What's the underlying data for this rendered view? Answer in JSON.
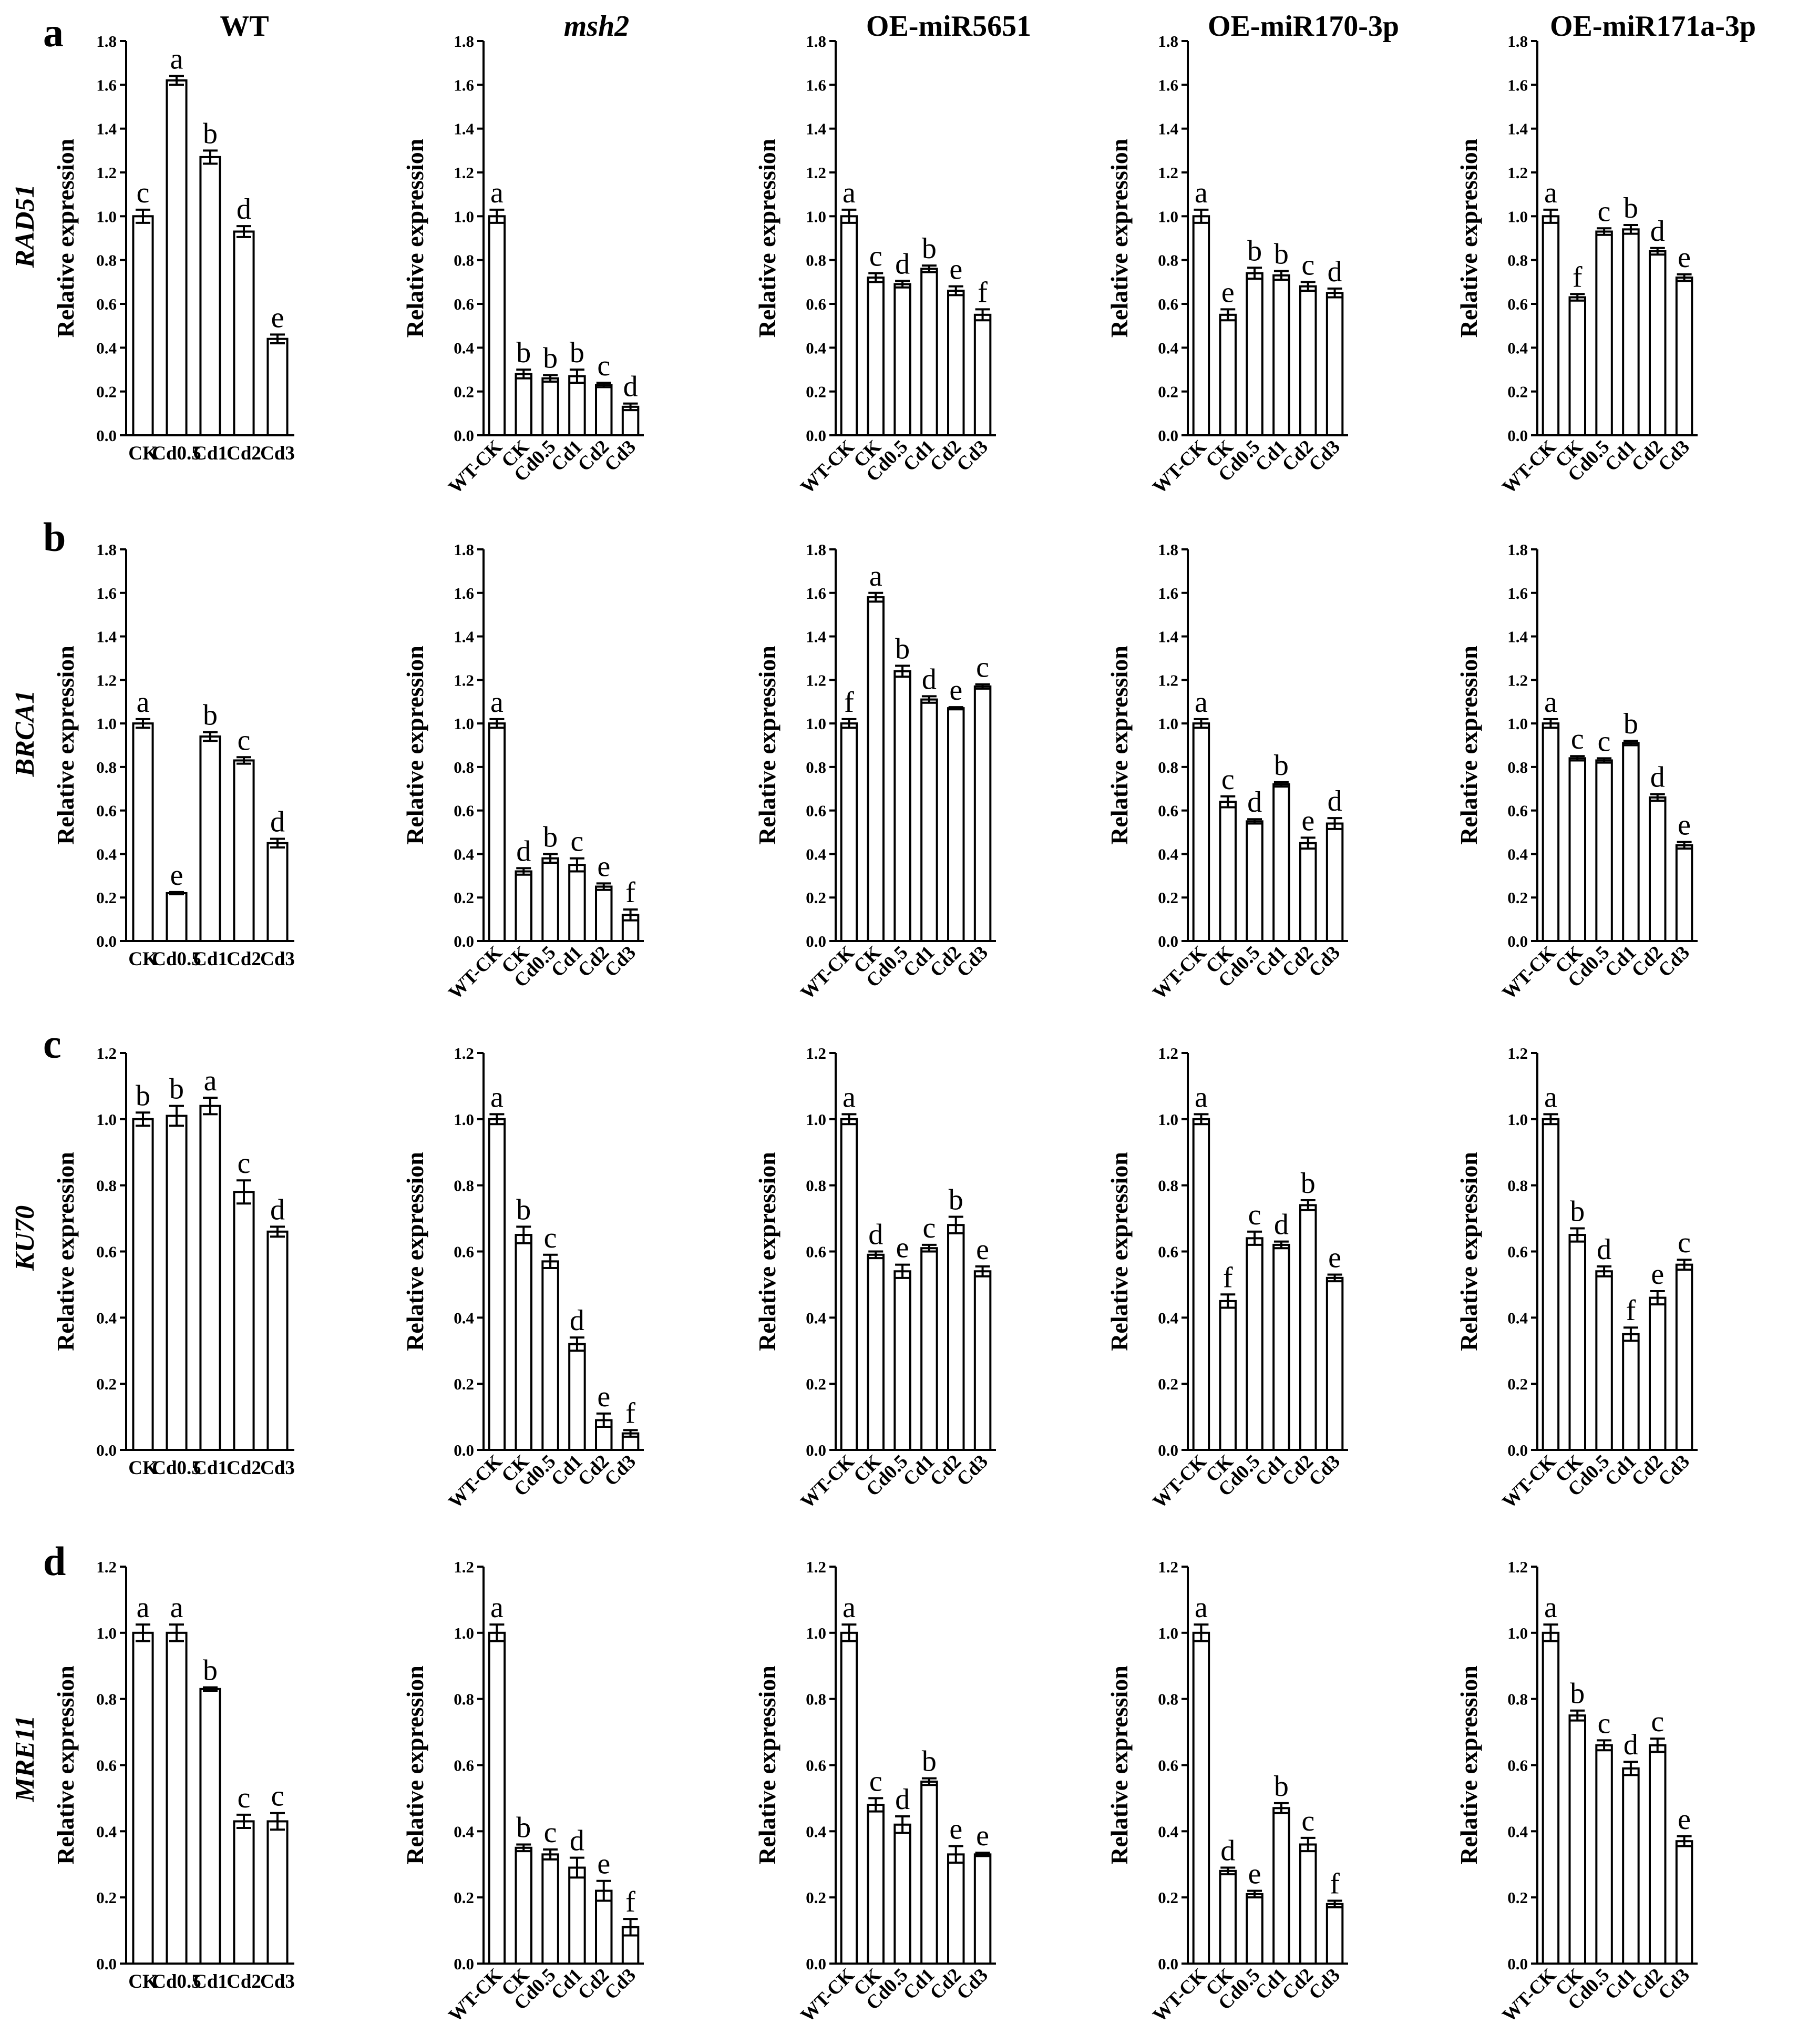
{
  "figure": {
    "columns": [
      {
        "title": "WT",
        "italic": false
      },
      {
        "title": "msh2",
        "italic": true
      },
      {
        "title": "OE-miR5651",
        "italic": false
      },
      {
        "title": "OE-miR170-3p",
        "italic": false
      },
      {
        "title": "OE-miR171a-3p",
        "italic": false
      }
    ],
    "rows": [
      {
        "letter": "a",
        "gene": "RAD51"
      },
      {
        "letter": "b",
        "gene": "BRCA1"
      },
      {
        "letter": "c",
        "gene": "KU70"
      },
      {
        "letter": "d",
        "gene": "MRE11"
      }
    ],
    "ylabel": "Relative expression",
    "bar_fill": "#ffffff",
    "bar_stroke": "#000000"
  },
  "chart_data": [
    {
      "type": "bar",
      "row": 0,
      "col": 0,
      "categories": [
        "CK",
        "Cd0.5",
        "Cd1",
        "Cd2",
        "Cd3"
      ],
      "values": [
        1.0,
        1.62,
        1.27,
        0.93,
        0.44
      ],
      "errors": [
        0.03,
        0.02,
        0.03,
        0.025,
        0.02
      ],
      "letters": [
        "c",
        "a",
        "b",
        "d",
        "e"
      ],
      "ylim": [
        0,
        1.8
      ],
      "yticks": [
        "0.0",
        "0.2",
        "0.4",
        "0.6",
        "0.8",
        "1.0",
        "1.2",
        "1.4",
        "1.6",
        "1.8"
      ],
      "ylabel": "Relative expression"
    },
    {
      "type": "bar",
      "row": 0,
      "col": 1,
      "categories": [
        "WT-CK",
        "CK",
        "Cd0.5",
        "Cd1",
        "Cd2",
        "Cd3"
      ],
      "values": [
        1.0,
        0.28,
        0.26,
        0.27,
        0.23,
        0.13
      ],
      "errors": [
        0.03,
        0.02,
        0.015,
        0.03,
        0.01,
        0.015
      ],
      "letters": [
        "a",
        "b",
        "b",
        "b",
        "c",
        "d"
      ],
      "ylim": [
        0,
        1.8
      ],
      "yticks": [
        "0.0",
        "0.2",
        "0.4",
        "0.6",
        "0.8",
        "1.0",
        "1.2",
        "1.4",
        "1.6",
        "1.8"
      ],
      "ylabel": "Relative expression"
    },
    {
      "type": "bar",
      "row": 0,
      "col": 2,
      "categories": [
        "WT-CK",
        "CK",
        "Cd0.5",
        "Cd1",
        "Cd2",
        "Cd3"
      ],
      "values": [
        1.0,
        0.72,
        0.69,
        0.76,
        0.66,
        0.55
      ],
      "errors": [
        0.03,
        0.02,
        0.015,
        0.015,
        0.02,
        0.025
      ],
      "letters": [
        "a",
        "c",
        "d",
        "b",
        "e",
        "f"
      ],
      "ylim": [
        0,
        1.8
      ],
      "yticks": [
        "0.0",
        "0.2",
        "0.4",
        "0.6",
        "0.8",
        "1.0",
        "1.2",
        "1.4",
        "1.6",
        "1.8"
      ],
      "ylabel": "Relative expression"
    },
    {
      "type": "bar",
      "row": 0,
      "col": 3,
      "categories": [
        "WT-CK",
        "CK",
        "Cd0.5",
        "Cd1",
        "Cd2",
        "Cd3"
      ],
      "values": [
        1.0,
        0.55,
        0.74,
        0.73,
        0.68,
        0.65
      ],
      "errors": [
        0.03,
        0.025,
        0.025,
        0.02,
        0.02,
        0.02
      ],
      "letters": [
        "a",
        "e",
        "b",
        "b",
        "c",
        "d"
      ],
      "ylim": [
        0,
        1.8
      ],
      "yticks": [
        "0.0",
        "0.2",
        "0.4",
        "0.6",
        "0.8",
        "1.0",
        "1.2",
        "1.4",
        "1.6",
        "1.8"
      ],
      "ylabel": "Relative expression"
    },
    {
      "type": "bar",
      "row": 0,
      "col": 4,
      "categories": [
        "WT-CK",
        "CK",
        "Cd0.5",
        "Cd1",
        "Cd2",
        "Cd3"
      ],
      "values": [
        1.0,
        0.63,
        0.93,
        0.94,
        0.84,
        0.72
      ],
      "errors": [
        0.03,
        0.015,
        0.015,
        0.02,
        0.015,
        0.015
      ],
      "letters": [
        "a",
        "f",
        "c",
        "b",
        "d",
        "e"
      ],
      "ylim": [
        0,
        1.8
      ],
      "yticks": [
        "0.0",
        "0.2",
        "0.4",
        "0.6",
        "0.8",
        "1.0",
        "1.2",
        "1.4",
        "1.6",
        "1.8"
      ],
      "ylabel": "Relative expression"
    },
    {
      "type": "bar",
      "row": 1,
      "col": 0,
      "categories": [
        "CK",
        "Cd0.5",
        "Cd1",
        "Cd2",
        "Cd3"
      ],
      "values": [
        1.0,
        0.22,
        0.94,
        0.83,
        0.45
      ],
      "errors": [
        0.02,
        0.005,
        0.02,
        0.015,
        0.02
      ],
      "letters": [
        "a",
        "e",
        "b",
        "c",
        "d"
      ],
      "ylim": [
        0,
        1.8
      ],
      "yticks": [
        "0.0",
        "0.2",
        "0.4",
        "0.6",
        "0.8",
        "1.0",
        "1.2",
        "1.4",
        "1.6",
        "1.8"
      ],
      "ylabel": "Relative expression"
    },
    {
      "type": "bar",
      "row": 1,
      "col": 1,
      "categories": [
        "WT-CK",
        "CK",
        "Cd0.5",
        "Cd1",
        "Cd2",
        "Cd3"
      ],
      "values": [
        1.0,
        0.32,
        0.38,
        0.35,
        0.25,
        0.12
      ],
      "errors": [
        0.02,
        0.015,
        0.02,
        0.03,
        0.015,
        0.025
      ],
      "letters": [
        "a",
        "d",
        "b",
        "c",
        "e",
        "f"
      ],
      "ylim": [
        0,
        1.8
      ],
      "yticks": [
        "0.0",
        "0.2",
        "0.4",
        "0.6",
        "0.8",
        "1.0",
        "1.2",
        "1.4",
        "1.6",
        "1.8"
      ],
      "ylabel": "Relative expression"
    },
    {
      "type": "bar",
      "row": 1,
      "col": 2,
      "categories": [
        "WT-CK",
        "CK",
        "Cd0.5",
        "Cd1",
        "Cd2",
        "Cd3"
      ],
      "values": [
        1.0,
        1.58,
        1.24,
        1.11,
        1.07,
        1.17
      ],
      "errors": [
        0.02,
        0.02,
        0.025,
        0.015,
        0.005,
        0.01
      ],
      "letters": [
        "f",
        "a",
        "b",
        "d",
        "e",
        "c"
      ],
      "ylim": [
        0,
        1.8
      ],
      "yticks": [
        "0.0",
        "0.2",
        "0.4",
        "0.6",
        "0.8",
        "1.0",
        "1.2",
        "1.4",
        "1.6",
        "1.8"
      ],
      "ylabel": "Relative expression"
    },
    {
      "type": "bar",
      "row": 1,
      "col": 3,
      "categories": [
        "WT-CK",
        "CK",
        "Cd0.5",
        "Cd1",
        "Cd2",
        "Cd3"
      ],
      "values": [
        1.0,
        0.64,
        0.55,
        0.72,
        0.45,
        0.54
      ],
      "errors": [
        0.02,
        0.025,
        0.01,
        0.01,
        0.025,
        0.025
      ],
      "letters": [
        "a",
        "c",
        "d",
        "b",
        "e",
        "d"
      ],
      "ylim": [
        0,
        1.8
      ],
      "yticks": [
        "0.0",
        "0.2",
        "0.4",
        "0.6",
        "0.8",
        "1.0",
        "1.2",
        "1.4",
        "1.6",
        "1.8"
      ],
      "ylabel": "Relative expression"
    },
    {
      "type": "bar",
      "row": 1,
      "col": 4,
      "categories": [
        "WT-CK",
        "CK",
        "Cd0.5",
        "Cd1",
        "Cd2",
        "Cd3"
      ],
      "values": [
        1.0,
        0.84,
        0.83,
        0.91,
        0.66,
        0.44
      ],
      "errors": [
        0.02,
        0.01,
        0.01,
        0.01,
        0.015,
        0.015
      ],
      "letters": [
        "a",
        "c",
        "c",
        "b",
        "d",
        "e"
      ],
      "ylim": [
        0,
        1.8
      ],
      "yticks": [
        "0.0",
        "0.2",
        "0.4",
        "0.6",
        "0.8",
        "1.0",
        "1.2",
        "1.4",
        "1.6",
        "1.8"
      ],
      "ylabel": "Relative expression"
    },
    {
      "type": "bar",
      "row": 2,
      "col": 0,
      "categories": [
        "CK",
        "Cd0.5",
        "Cd1",
        "Cd2",
        "Cd3"
      ],
      "values": [
        1.0,
        1.01,
        1.04,
        0.78,
        0.66
      ],
      "errors": [
        0.02,
        0.03,
        0.025,
        0.035,
        0.015
      ],
      "letters": [
        "b",
        "b",
        "a",
        "c",
        "d"
      ],
      "ylim": [
        0,
        1.2
      ],
      "yticks": [
        "0.0",
        "0.2",
        "0.4",
        "0.6",
        "0.8",
        "1.0",
        "1.2"
      ],
      "ylabel": "Relative expression"
    },
    {
      "type": "bar",
      "row": 2,
      "col": 1,
      "categories": [
        "WT-CK",
        "CK",
        "Cd0.5",
        "Cd1",
        "Cd2",
        "Cd3"
      ],
      "values": [
        1.0,
        0.65,
        0.57,
        0.32,
        0.09,
        0.05
      ],
      "errors": [
        0.015,
        0.025,
        0.02,
        0.02,
        0.02,
        0.01
      ],
      "letters": [
        "a",
        "b",
        "c",
        "d",
        "e",
        "f"
      ],
      "ylim": [
        0,
        1.2
      ],
      "yticks": [
        "0.0",
        "0.2",
        "0.4",
        "0.6",
        "0.8",
        "1.0",
        "1.2"
      ],
      "ylabel": "Relative expression"
    },
    {
      "type": "bar",
      "row": 2,
      "col": 2,
      "categories": [
        "WT-CK",
        "CK",
        "Cd0.5",
        "Cd1",
        "Cd2",
        "Cd3"
      ],
      "values": [
        1.0,
        0.59,
        0.54,
        0.61,
        0.68,
        0.54
      ],
      "errors": [
        0.015,
        0.01,
        0.02,
        0.01,
        0.025,
        0.015
      ],
      "letters": [
        "a",
        "d",
        "e",
        "c",
        "b",
        "e"
      ],
      "ylim": [
        0,
        1.2
      ],
      "yticks": [
        "0.0",
        "0.2",
        "0.4",
        "0.6",
        "0.8",
        "1.0",
        "1.2"
      ],
      "ylabel": "Relative expression"
    },
    {
      "type": "bar",
      "row": 2,
      "col": 3,
      "categories": [
        "WT-CK",
        "CK",
        "Cd0.5",
        "Cd1",
        "Cd2",
        "Cd3"
      ],
      "values": [
        1.0,
        0.45,
        0.64,
        0.62,
        0.74,
        0.52
      ],
      "errors": [
        0.015,
        0.02,
        0.02,
        0.01,
        0.015,
        0.01
      ],
      "letters": [
        "a",
        "f",
        "c",
        "d",
        "b",
        "e"
      ],
      "ylim": [
        0,
        1.2
      ],
      "yticks": [
        "0.0",
        "0.2",
        "0.4",
        "0.6",
        "0.8",
        "1.0",
        "1.2"
      ],
      "ylabel": "Relative expression"
    },
    {
      "type": "bar",
      "row": 2,
      "col": 4,
      "categories": [
        "WT-CK",
        "CK",
        "Cd0.5",
        "Cd1",
        "Cd2",
        "Cd3"
      ],
      "values": [
        1.0,
        0.65,
        0.54,
        0.35,
        0.46,
        0.56
      ],
      "errors": [
        0.015,
        0.02,
        0.015,
        0.02,
        0.02,
        0.015
      ],
      "letters": [
        "a",
        "b",
        "d",
        "f",
        "e",
        "c"
      ],
      "ylim": [
        0,
        1.2
      ],
      "yticks": [
        "0.0",
        "0.2",
        "0.4",
        "0.6",
        "0.8",
        "1.0",
        "1.2"
      ],
      "ylabel": "Relative expression"
    },
    {
      "type": "bar",
      "row": 3,
      "col": 0,
      "categories": [
        "CK",
        "Cd0.5",
        "Cd1",
        "Cd2",
        "Cd3"
      ],
      "values": [
        1.0,
        1.0,
        0.83,
        0.43,
        0.43
      ],
      "errors": [
        0.025,
        0.025,
        0.005,
        0.02,
        0.025
      ],
      "letters": [
        "a",
        "a",
        "b",
        "c",
        "c"
      ],
      "ylim": [
        0,
        1.2
      ],
      "yticks": [
        "0.0",
        "0.2",
        "0.4",
        "0.6",
        "0.8",
        "1.0",
        "1.2"
      ],
      "ylabel": "Relative expression"
    },
    {
      "type": "bar",
      "row": 3,
      "col": 1,
      "categories": [
        "WT-CK",
        "CK",
        "Cd0.5",
        "Cd1",
        "Cd2",
        "Cd3"
      ],
      "values": [
        1.0,
        0.35,
        0.33,
        0.29,
        0.22,
        0.11
      ],
      "errors": [
        0.025,
        0.01,
        0.015,
        0.03,
        0.03,
        0.025
      ],
      "letters": [
        "a",
        "b",
        "c",
        "d",
        "e",
        "f"
      ],
      "ylim": [
        0,
        1.2
      ],
      "yticks": [
        "0.0",
        "0.2",
        "0.4",
        "0.6",
        "0.8",
        "1.0",
        "1.2"
      ],
      "ylabel": "Relative expression"
    },
    {
      "type": "bar",
      "row": 3,
      "col": 2,
      "categories": [
        "WT-CK",
        "CK",
        "Cd0.5",
        "Cd1",
        "Cd2",
        "Cd3"
      ],
      "values": [
        1.0,
        0.48,
        0.42,
        0.55,
        0.33,
        0.33
      ],
      "errors": [
        0.025,
        0.02,
        0.025,
        0.01,
        0.025,
        0.005
      ],
      "letters": [
        "a",
        "c",
        "d",
        "b",
        "e",
        "e"
      ],
      "ylim": [
        0,
        1.2
      ],
      "yticks": [
        "0.0",
        "0.2",
        "0.4",
        "0.6",
        "0.8",
        "1.0",
        "1.2"
      ],
      "ylabel": "Relative expression"
    },
    {
      "type": "bar",
      "row": 3,
      "col": 3,
      "categories": [
        "WT-CK",
        "CK",
        "Cd0.5",
        "Cd1",
        "Cd2",
        "Cd3"
      ],
      "values": [
        1.0,
        0.28,
        0.21,
        0.47,
        0.36,
        0.18
      ],
      "errors": [
        0.025,
        0.01,
        0.01,
        0.015,
        0.02,
        0.01
      ],
      "letters": [
        "a",
        "d",
        "e",
        "b",
        "c",
        "f"
      ],
      "ylim": [
        0,
        1.2
      ],
      "yticks": [
        "0.0",
        "0.2",
        "0.4",
        "0.6",
        "0.8",
        "1.0",
        "1.2"
      ],
      "ylabel": "Relative expression"
    },
    {
      "type": "bar",
      "row": 3,
      "col": 4,
      "categories": [
        "WT-CK",
        "CK",
        "Cd0.5",
        "Cd1",
        "Cd2",
        "Cd3"
      ],
      "values": [
        1.0,
        0.75,
        0.66,
        0.59,
        0.66,
        0.37
      ],
      "errors": [
        0.025,
        0.015,
        0.015,
        0.02,
        0.02,
        0.015
      ],
      "letters": [
        "a",
        "b",
        "c",
        "d",
        "c",
        "e"
      ],
      "ylim": [
        0,
        1.2
      ],
      "yticks": [
        "0.0",
        "0.2",
        "0.4",
        "0.6",
        "0.8",
        "1.0",
        "1.2"
      ],
      "ylabel": "Relative expression"
    }
  ]
}
